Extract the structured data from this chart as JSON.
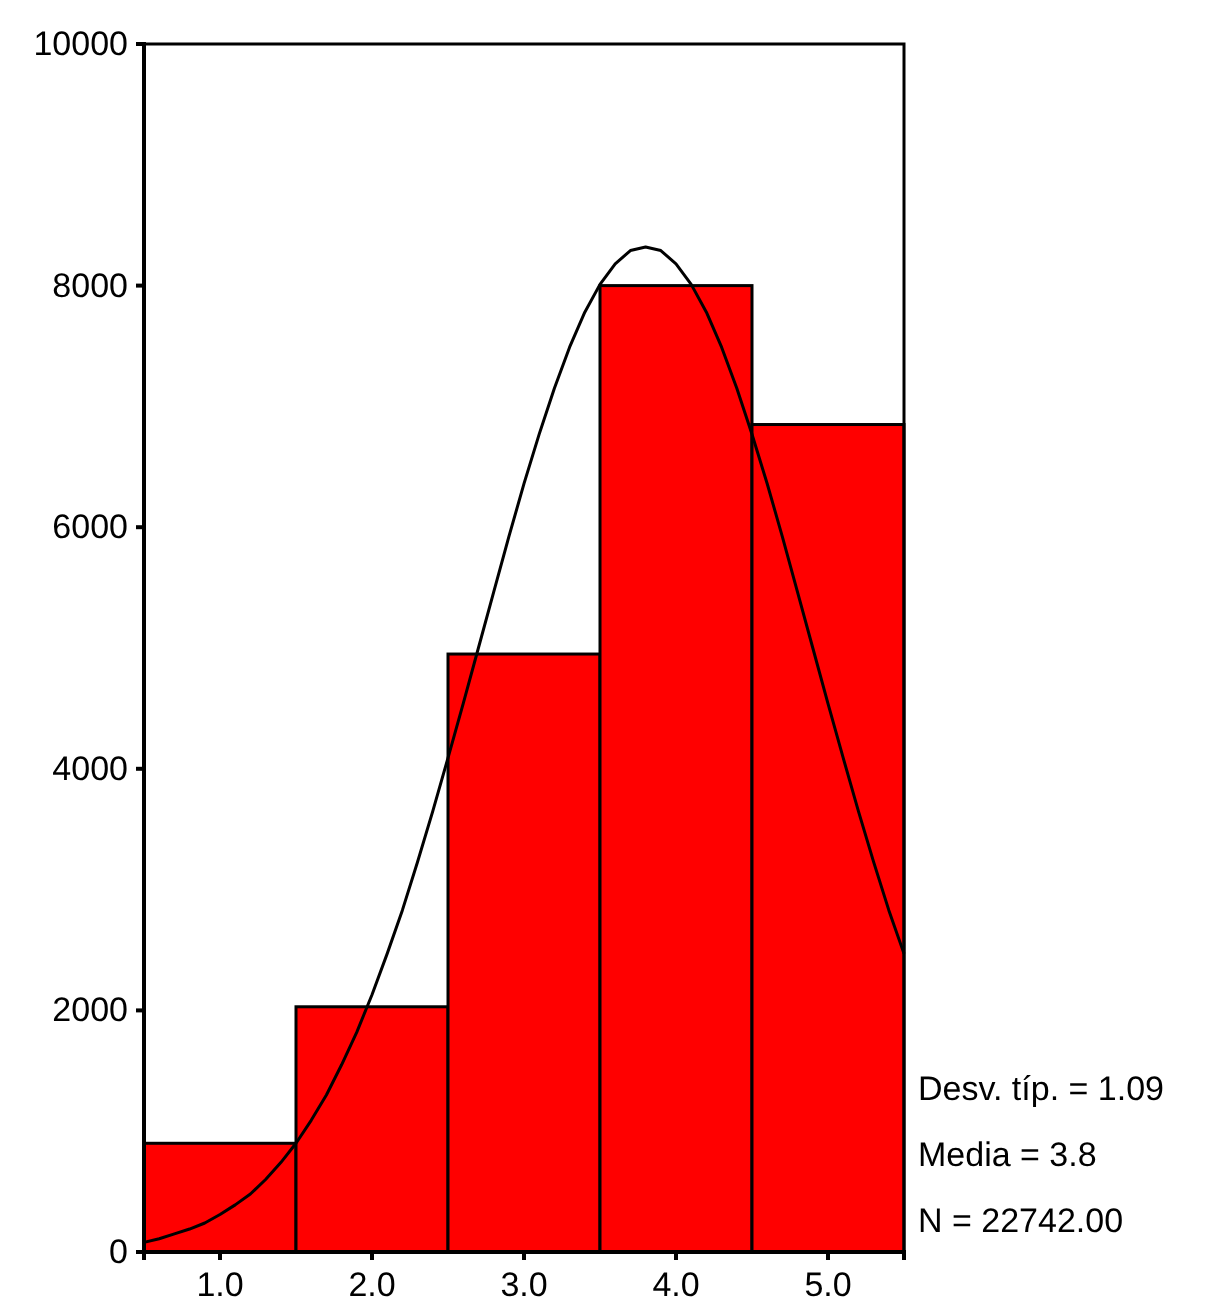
{
  "chart_data": {
    "type": "histogram",
    "bins": [
      0.5,
      1.5,
      2.5,
      3.5,
      4.5,
      5.5
    ],
    "values": [
      900,
      2030,
      4950,
      8000,
      6850
    ],
    "color": "#ff0000",
    "series": [
      {
        "type": "line",
        "color": "#000000",
        "x": [
          0.5,
          0.6,
          0.7,
          0.8,
          0.9,
          1.0,
          1.1,
          1.2,
          1.3,
          1.4,
          1.5,
          1.6,
          1.7,
          1.8,
          1.9,
          2.0,
          2.1,
          2.2,
          2.3,
          2.4,
          2.5,
          2.6,
          2.7,
          2.8,
          2.9,
          3.0,
          3.1,
          3.2,
          3.3,
          3.4,
          3.5,
          3.6,
          3.7,
          3.8,
          3.9,
          4.0,
          4.1,
          4.2,
          4.3,
          4.4,
          4.5,
          4.6,
          4.7,
          4.8,
          4.9,
          5.0,
          5.1,
          5.2,
          5.3,
          5.4,
          5.5
        ],
        "values": [
          80,
          110,
          150,
          190,
          240,
          310,
          390,
          480,
          600,
          740,
          900,
          1090,
          1300,
          1550,
          1820,
          2130,
          2470,
          2830,
          3230,
          3650,
          4090,
          4540,
          5000,
          5460,
          5920,
          6360,
          6770,
          7150,
          7490,
          7780,
          8010,
          8180,
          8290,
          8320,
          8290,
          8180,
          8010,
          7780,
          7490,
          7150,
          6770,
          6360,
          5920,
          5460,
          5000,
          4540,
          4090,
          3650,
          3230,
          2830,
          2470
        ]
      }
    ],
    "xlim": [
      0.5,
      5.5
    ],
    "xticks": [
      {
        "value": 1,
        "label": "1.0"
      },
      {
        "value": 2,
        "label": "2.0"
      },
      {
        "value": 3,
        "label": "3.0"
      },
      {
        "value": 4,
        "label": "4.0"
      },
      {
        "value": 5,
        "label": "5.0"
      }
    ],
    "ylim": [
      0,
      10000
    ],
    "yticks": [
      0,
      2000,
      4000,
      6000,
      8000,
      10000
    ],
    "annotations": [
      "Desv. típ. = 1.09",
      "Media = 3.8",
      "N = 22742.00"
    ]
  }
}
